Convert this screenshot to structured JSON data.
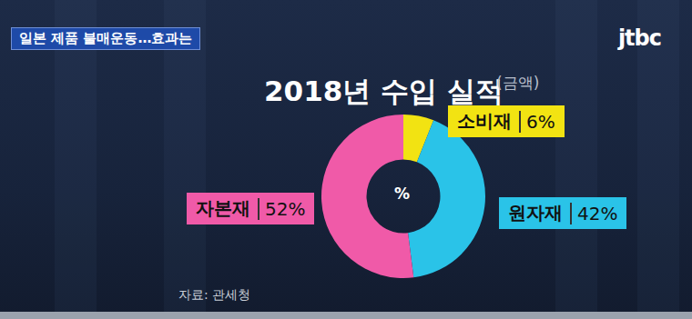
{
  "screen": {
    "banner": "일본 제품 불매운동…효과는",
    "logo": "jtbc",
    "source": "자료: 관세청"
  },
  "chart_data": {
    "type": "pie",
    "title": "2018년 수입 실적",
    "subtitle": "(금액)",
    "categories": [
      "소비재",
      "원자재",
      "자본재"
    ],
    "values": [
      6,
      42,
      52
    ],
    "value_labels": [
      "6%",
      "42%",
      "52%"
    ],
    "colors": [
      "#f2e312",
      "#2ac3e8",
      "#f05aa8"
    ],
    "data_labels": true,
    "annotations": [
      "%"
    ]
  }
}
